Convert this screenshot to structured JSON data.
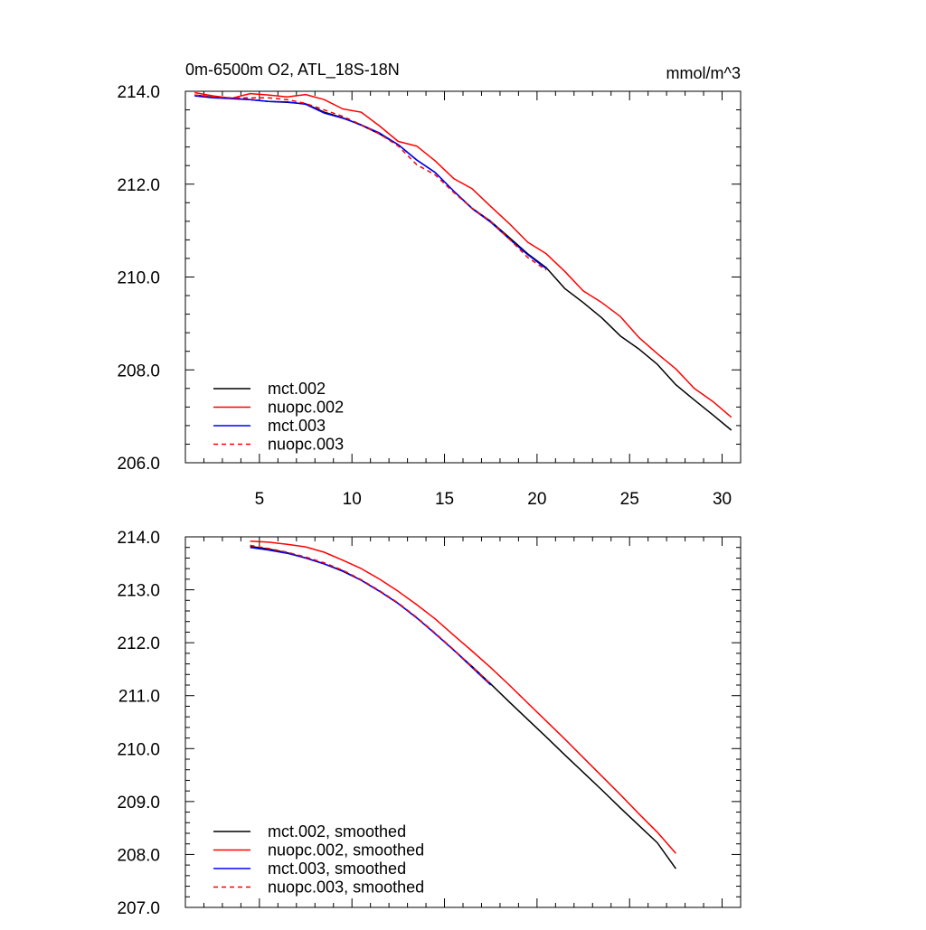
{
  "chart_data": [
    {
      "type": "line",
      "title": "0m-6500m O2, ATL_18S-18N",
      "units": "mmol/m^3",
      "xlim": [
        1,
        31
      ],
      "ylim": [
        206,
        214
      ],
      "xticks": [
        5,
        10,
        15,
        20,
        25,
        30
      ],
      "yticks": [
        206,
        208,
        210,
        212,
        214
      ],
      "ytick_labels": [
        "206.0",
        "208.0",
        "210.0",
        "212.0",
        "214.0"
      ],
      "legend_position": "bottom-left",
      "series": [
        {
          "name": "mct.002",
          "color": "#000000",
          "dash": "solid",
          "x": [
            1.5,
            2.5,
            3.5,
            4.5,
            5.5,
            6.5,
            7.5,
            8.5,
            9.5,
            10.5,
            11.5,
            12.5,
            13.5,
            14.5,
            15.5,
            16.5,
            17.5,
            18.5,
            19.5,
            20.5,
            21.5,
            22.5,
            23.5,
            24.5,
            25.5,
            26.5,
            27.5,
            28.5,
            29.5,
            30.5
          ],
          "y": [
            213.92,
            213.87,
            213.85,
            213.82,
            213.78,
            213.76,
            213.73,
            213.55,
            213.43,
            213.27,
            213.08,
            212.85,
            212.52,
            212.25,
            211.85,
            211.48,
            211.2,
            210.85,
            210.5,
            210.2,
            209.75,
            209.45,
            209.12,
            208.73,
            208.45,
            208.12,
            207.68,
            207.35,
            207.03,
            206.7
          ]
        },
        {
          "name": "nuopc.002",
          "color": "#ff0000",
          "dash": "solid",
          "x": [
            1.5,
            2.5,
            3.5,
            4.5,
            5.5,
            6.5,
            7.5,
            8.5,
            9.5,
            10.5,
            11.5,
            12.5,
            13.5,
            14.5,
            15.5,
            16.5,
            17.5,
            18.5,
            19.5,
            20.5,
            21.5,
            22.5,
            23.5,
            24.5,
            25.5,
            26.5,
            27.5,
            28.5,
            29.5,
            30.5
          ],
          "y": [
            213.97,
            213.9,
            213.85,
            213.95,
            213.92,
            213.88,
            213.93,
            213.82,
            213.62,
            213.55,
            213.25,
            212.92,
            212.82,
            212.5,
            212.12,
            211.9,
            211.52,
            211.15,
            210.75,
            210.5,
            210.12,
            209.7,
            209.45,
            209.15,
            208.7,
            208.35,
            208.02,
            207.6,
            207.32,
            206.98
          ]
        },
        {
          "name": "mct.003",
          "color": "#0000ff",
          "dash": "solid",
          "x": [
            1.5,
            2.5,
            3.5,
            4.5,
            5.5,
            6.5,
            7.5,
            8.5,
            9.5,
            10.5,
            11.5,
            12.5,
            13.5,
            14.5,
            15.5,
            16.5,
            17.5,
            18.5,
            19.5,
            20.5
          ],
          "y": [
            213.9,
            213.86,
            213.84,
            213.82,
            213.78,
            213.77,
            213.72,
            213.53,
            213.42,
            213.28,
            213.1,
            212.85,
            212.52,
            212.25,
            211.85,
            211.47,
            211.18,
            210.82,
            210.48,
            210.18
          ]
        },
        {
          "name": "nuopc.003",
          "color": "#ff0000",
          "dash": "dashed",
          "x": [
            1.5,
            2.5,
            3.5,
            4.5,
            5.5,
            6.5,
            7.5,
            8.5,
            9.5,
            10.5,
            11.5,
            12.5,
            13.5,
            14.5,
            15.5,
            16.5,
            17.5,
            18.5,
            19.5,
            20.5
          ],
          "y": [
            213.92,
            213.88,
            213.86,
            213.86,
            213.86,
            213.82,
            213.74,
            213.6,
            213.46,
            213.28,
            213.08,
            212.82,
            212.42,
            212.2,
            211.82,
            211.48,
            211.2,
            210.82,
            210.42,
            210.15
          ]
        }
      ]
    },
    {
      "type": "line",
      "xlim": [
        1,
        31
      ],
      "ylim": [
        207,
        214
      ],
      "xticks": [
        5,
        10,
        15,
        20,
        25,
        30
      ],
      "yticks": [
        207,
        208,
        209,
        210,
        211,
        212,
        213,
        214
      ],
      "ytick_labels": [
        "207.0",
        "208.0",
        "209.0",
        "210.0",
        "211.0",
        "212.0",
        "213.0",
        "214.0"
      ],
      "legend_position": "bottom-left",
      "series": [
        {
          "name": "mct.002, smoothed",
          "color": "#000000",
          "dash": "solid",
          "x": [
            4.5,
            5.5,
            6.5,
            7.5,
            8.5,
            9.5,
            10.5,
            11.5,
            12.5,
            13.5,
            14.5,
            15.5,
            16.5,
            17.5,
            18.5,
            19.5,
            20.5,
            21.5,
            22.5,
            23.5,
            24.5,
            25.5,
            26.5,
            27.5
          ],
          "y": [
            213.82,
            213.77,
            213.7,
            213.6,
            213.49,
            213.35,
            213.18,
            212.97,
            212.74,
            212.47,
            212.17,
            211.86,
            211.55,
            211.22,
            210.88,
            210.55,
            210.22,
            209.88,
            209.55,
            209.22,
            208.88,
            208.55,
            208.22,
            207.73
          ]
        },
        {
          "name": "nuopc.002, smoothed",
          "color": "#ff0000",
          "dash": "solid",
          "x": [
            4.5,
            5.5,
            6.5,
            7.5,
            8.5,
            9.5,
            10.5,
            11.5,
            12.5,
            13.5,
            14.5,
            15.5,
            16.5,
            17.5,
            18.5,
            19.5,
            20.5,
            21.5,
            22.5,
            23.5,
            24.5,
            25.5,
            26.5,
            27.5
          ],
          "y": [
            213.92,
            213.9,
            213.86,
            213.81,
            213.71,
            213.56,
            213.4,
            213.2,
            212.97,
            212.72,
            212.45,
            212.14,
            211.84,
            211.53,
            211.2,
            210.86,
            210.52,
            210.18,
            209.83,
            209.48,
            209.13,
            208.77,
            208.42,
            208.02
          ]
        },
        {
          "name": "mct.003, smoothed",
          "color": "#0000ff",
          "dash": "solid",
          "x": [
            4.5,
            5.5,
            6.5,
            7.5,
            8.5,
            9.5,
            10.5,
            11.5,
            12.5,
            13.5,
            14.5,
            15.5,
            16.5,
            17.5
          ],
          "y": [
            213.8,
            213.75,
            213.69,
            213.6,
            213.49,
            213.36,
            213.18,
            212.97,
            212.74,
            212.47,
            212.17,
            211.86,
            211.53,
            211.2
          ]
        },
        {
          "name": "nuopc.003, smoothed",
          "color": "#ff0000",
          "dash": "dashed",
          "x": [
            4.5,
            5.5,
            6.5,
            7.5,
            8.5,
            9.5,
            10.5,
            11.5,
            12.5,
            13.5,
            14.5,
            15.5,
            16.5,
            17.5
          ],
          "y": [
            213.84,
            213.78,
            213.71,
            213.62,
            213.51,
            213.37,
            213.19,
            212.98,
            212.75,
            212.48,
            212.18,
            211.87,
            211.54,
            211.22
          ]
        }
      ]
    }
  ]
}
